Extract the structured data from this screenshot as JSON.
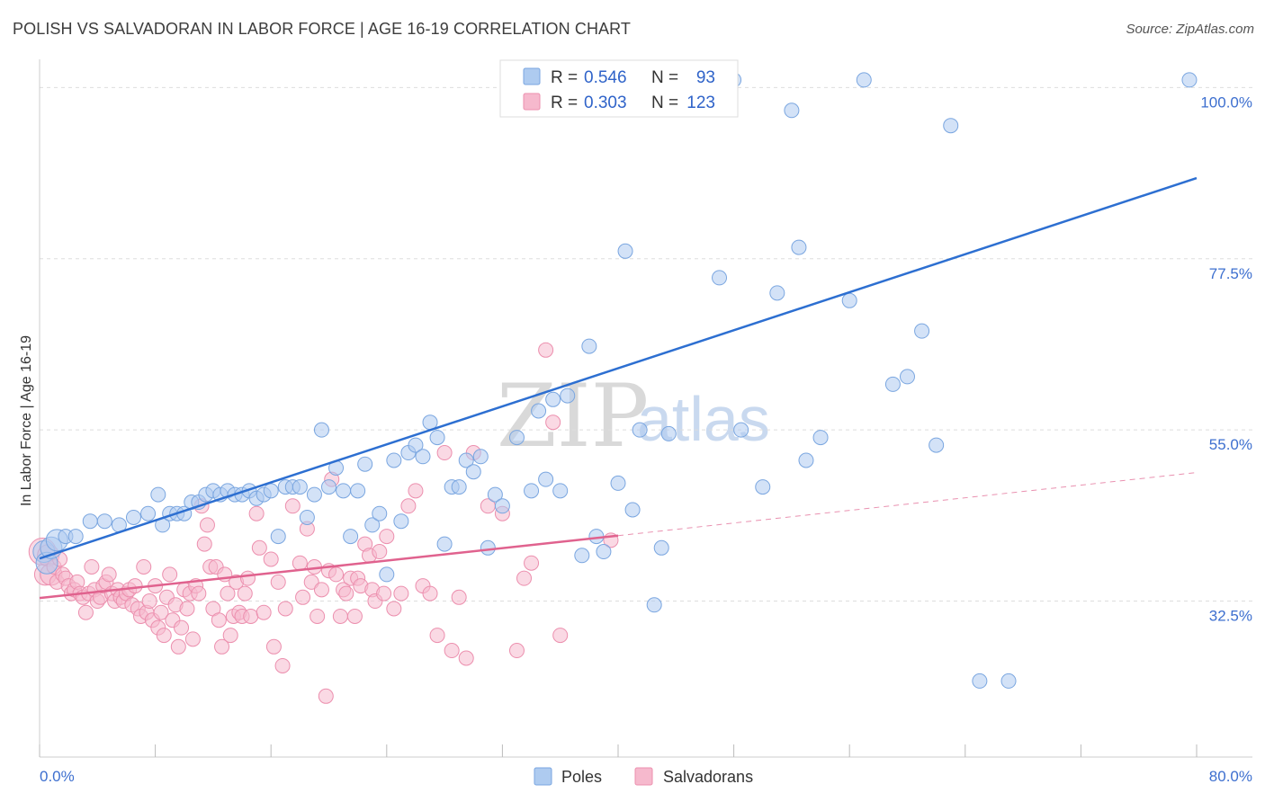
{
  "title": "POLISH VS SALVADORAN IN LABOR FORCE | AGE 16-19 CORRELATION CHART",
  "source": "Source: ZipAtlas.com",
  "watermark": {
    "zip": "ZIP",
    "atlas": "atlas"
  },
  "legend": {
    "poles": {
      "r_label": "R =",
      "r_value": "0.546",
      "n_label": "N =",
      "n_value": "93"
    },
    "salvadorans": {
      "r_label": "R =",
      "r_value": "0.303",
      "n_label": "N =",
      "n_value": "123"
    }
  },
  "bottom_legend": {
    "poles": "Poles",
    "salvadorans": "Salvadorans"
  },
  "colors": {
    "poles_fill": "#aecbf0",
    "poles_stroke": "#7aa6e0",
    "poles_line": "#2d6fd1",
    "salv_fill": "#f6b9cd",
    "salv_stroke": "#ec8fae",
    "salv_line": "#e0628e",
    "grid": "#dddddd",
    "axis_text": "#3d6fcf"
  },
  "chart_data": {
    "type": "scatter",
    "title": "POLISH VS SALVADORAN IN LABOR FORCE | AGE 16-19 CORRELATION CHART",
    "xlabel": "",
    "ylabel": "In Labor Force | Age 16-19",
    "xlim": [
      0,
      80
    ],
    "ylim": [
      12,
      103
    ],
    "x_tick_labels": [
      "0.0%",
      "80.0%"
    ],
    "y_ticks": [
      32.5,
      55.0,
      77.5,
      100.0
    ],
    "y_tick_labels": [
      "32.5%",
      "55.0%",
      "77.5%",
      "100.0%"
    ],
    "grid": true,
    "series": [
      {
        "name": "Poles",
        "trend": {
          "x0": 0,
          "y0": 38.1,
          "x1": 80,
          "y1": 88.1
        },
        "points": [
          [
            0.3,
            39,
            1
          ],
          [
            0.5,
            37.5,
            1
          ],
          [
            0.8,
            39.5,
            1
          ],
          [
            1.2,
            40.5,
            1
          ],
          [
            1.8,
            41,
            0
          ],
          [
            2.5,
            41,
            0
          ],
          [
            3.5,
            43,
            0
          ],
          [
            4.5,
            43,
            0
          ],
          [
            5.5,
            42.5,
            0
          ],
          [
            6.5,
            43.5,
            0
          ],
          [
            7.5,
            44,
            0
          ],
          [
            8.2,
            46.5,
            0
          ],
          [
            8.5,
            42.5,
            0
          ],
          [
            9,
            44,
            0
          ],
          [
            9.5,
            44,
            0
          ],
          [
            10,
            44,
            0
          ],
          [
            10.5,
            45.5,
            0
          ],
          [
            11,
            45.5,
            0
          ],
          [
            11.5,
            46.5,
            0
          ],
          [
            12,
            47,
            0
          ],
          [
            12.5,
            46.5,
            0
          ],
          [
            13,
            47,
            0
          ],
          [
            13.5,
            46.5,
            0
          ],
          [
            14,
            46.5,
            0
          ],
          [
            14.5,
            47,
            0
          ],
          [
            15,
            46,
            0
          ],
          [
            15.5,
            46.5,
            0
          ],
          [
            16,
            47,
            0
          ],
          [
            16.5,
            41,
            0
          ],
          [
            17,
            47.5,
            0
          ],
          [
            17.5,
            47.5,
            0
          ],
          [
            18,
            47.5,
            0
          ],
          [
            18.5,
            43.5,
            0
          ],
          [
            19,
            46.5,
            0
          ],
          [
            19.5,
            55,
            0
          ],
          [
            20,
            47.5,
            0
          ],
          [
            20.5,
            50,
            0
          ],
          [
            21,
            47,
            0
          ],
          [
            21.5,
            41,
            0
          ],
          [
            22,
            47,
            0
          ],
          [
            22.5,
            50.5,
            0
          ],
          [
            23,
            42.5,
            0
          ],
          [
            23.5,
            44,
            0
          ],
          [
            24,
            36,
            0
          ],
          [
            24.5,
            51,
            0
          ],
          [
            25,
            43,
            0
          ],
          [
            25.5,
            52,
            0
          ],
          [
            26,
            53,
            0
          ],
          [
            26.5,
            51.5,
            0
          ],
          [
            27,
            56,
            0
          ],
          [
            27.5,
            54,
            0
          ],
          [
            28,
            40,
            0
          ],
          [
            28.5,
            47.5,
            0
          ],
          [
            29,
            47.5,
            0
          ],
          [
            29.5,
            51,
            0
          ],
          [
            30,
            49.5,
            0
          ],
          [
            30.5,
            51.5,
            0
          ],
          [
            31,
            39.5,
            0
          ],
          [
            31.5,
            46.5,
            0
          ],
          [
            32,
            45,
            0
          ],
          [
            33,
            54,
            0
          ],
          [
            34,
            47,
            0
          ],
          [
            34.5,
            57.5,
            0
          ],
          [
            35,
            48.5,
            0
          ],
          [
            35.5,
            59,
            0
          ],
          [
            36,
            47,
            0
          ],
          [
            36.5,
            59.5,
            0
          ],
          [
            37.5,
            38.5,
            0
          ],
          [
            38,
            66,
            0
          ],
          [
            38.5,
            41,
            0
          ],
          [
            39,
            39,
            0
          ],
          [
            40,
            48,
            0
          ],
          [
            40.5,
            78.5,
            0
          ],
          [
            41,
            44.5,
            0
          ],
          [
            41.5,
            55,
            0
          ],
          [
            42.5,
            32,
            0
          ],
          [
            43,
            39.5,
            0
          ],
          [
            43.5,
            54.5,
            0
          ],
          [
            45,
            101,
            0
          ],
          [
            46,
            101,
            0
          ],
          [
            47,
            75,
            0
          ],
          [
            48,
            101,
            0
          ],
          [
            48.5,
            55,
            0
          ],
          [
            50,
            47.5,
            0
          ],
          [
            51,
            73,
            0
          ],
          [
            52,
            97,
            0
          ],
          [
            52.5,
            79,
            0
          ],
          [
            53,
            51,
            0
          ],
          [
            54,
            54,
            0
          ],
          [
            56,
            72,
            0
          ],
          [
            57,
            101,
            0
          ],
          [
            59,
            61,
            0
          ],
          [
            60,
            62,
            0
          ],
          [
            61,
            68,
            0
          ],
          [
            62,
            53,
            0
          ],
          [
            63,
            95,
            0
          ],
          [
            65,
            22,
            0
          ],
          [
            67,
            22,
            0
          ],
          [
            79.5,
            101,
            0
          ]
        ]
      },
      {
        "name": "Salvadorans",
        "trend": {
          "x0": 0,
          "y0": 32.9,
          "x1": 40,
          "y1": 41.1
        },
        "trend_dashed": {
          "x0": 40,
          "y0": 41.1,
          "x1": 80,
          "y1": 49.4
        },
        "points": [
          [
            0.2,
            39,
            2
          ],
          [
            0.4,
            36,
            1
          ],
          [
            0.6,
            38.5,
            1
          ],
          [
            0.8,
            36,
            1
          ],
          [
            1,
            37,
            0
          ],
          [
            1.2,
            35,
            0
          ],
          [
            1.4,
            38,
            0
          ],
          [
            1.6,
            36,
            0
          ],
          [
            1.8,
            35.5,
            0
          ],
          [
            2,
            34.5,
            0
          ],
          [
            2.2,
            33.5,
            0
          ],
          [
            2.4,
            34,
            0
          ],
          [
            2.6,
            35,
            0
          ],
          [
            2.8,
            33.5,
            0
          ],
          [
            3,
            33,
            0
          ],
          [
            3.2,
            31,
            0
          ],
          [
            3.4,
            33.5,
            0
          ],
          [
            3.6,
            37,
            0
          ],
          [
            3.8,
            34,
            0
          ],
          [
            4,
            32.5,
            0
          ],
          [
            4.2,
            33,
            0
          ],
          [
            4.4,
            34.5,
            0
          ],
          [
            4.6,
            35,
            0
          ],
          [
            4.8,
            36,
            0
          ],
          [
            5,
            33.5,
            0
          ],
          [
            5.2,
            32.5,
            0
          ],
          [
            5.4,
            34,
            0
          ],
          [
            5.6,
            33,
            0
          ],
          [
            5.8,
            32.5,
            0
          ],
          [
            6,
            33.5,
            0
          ],
          [
            6.2,
            34,
            0
          ],
          [
            6.4,
            32,
            0
          ],
          [
            6.6,
            34.5,
            0
          ],
          [
            6.8,
            31.5,
            0
          ],
          [
            7,
            30.5,
            0
          ],
          [
            7.2,
            37,
            0
          ],
          [
            7.4,
            31,
            0
          ],
          [
            7.6,
            32.5,
            0
          ],
          [
            7.8,
            30,
            0
          ],
          [
            8,
            34.5,
            0
          ],
          [
            8.2,
            29,
            0
          ],
          [
            8.4,
            31,
            0
          ],
          [
            8.6,
            28,
            0
          ],
          [
            8.8,
            33,
            0
          ],
          [
            9,
            36,
            0
          ],
          [
            9.2,
            30,
            0
          ],
          [
            9.4,
            32,
            0
          ],
          [
            9.6,
            26.5,
            0
          ],
          [
            9.8,
            29,
            0
          ],
          [
            10,
            34,
            0
          ],
          [
            10.2,
            31.5,
            0
          ],
          [
            10.4,
            33.5,
            0
          ],
          [
            10.6,
            27.5,
            0
          ],
          [
            10.8,
            34.5,
            0
          ],
          [
            11,
            33.5,
            0
          ],
          [
            11.2,
            45,
            0
          ],
          [
            11.4,
            40,
            0
          ],
          [
            11.6,
            42.5,
            0
          ],
          [
            11.8,
            37,
            0
          ],
          [
            12,
            31.5,
            0
          ],
          [
            12.2,
            37,
            0
          ],
          [
            12.4,
            30,
            0
          ],
          [
            12.6,
            26.5,
            0
          ],
          [
            12.8,
            36,
            0
          ],
          [
            13,
            33.5,
            0
          ],
          [
            13.2,
            28,
            0
          ],
          [
            13.4,
            30.5,
            0
          ],
          [
            13.6,
            35,
            0
          ],
          [
            13.8,
            31,
            0
          ],
          [
            14,
            30.5,
            0
          ],
          [
            14.2,
            33.5,
            0
          ],
          [
            14.4,
            35.5,
            0
          ],
          [
            14.6,
            30.5,
            0
          ],
          [
            15,
            44,
            0
          ],
          [
            15.2,
            39.5,
            0
          ],
          [
            15.5,
            31,
            0
          ],
          [
            16,
            38,
            0
          ],
          [
            16.2,
            26.5,
            0
          ],
          [
            16.5,
            35,
            0
          ],
          [
            16.8,
            24,
            0
          ],
          [
            17,
            31.5,
            0
          ],
          [
            17.5,
            45,
            0
          ],
          [
            18,
            37.5,
            0
          ],
          [
            18.2,
            33,
            0
          ],
          [
            18.5,
            42,
            0
          ],
          [
            18.8,
            35,
            0
          ],
          [
            19,
            37,
            0
          ],
          [
            19.2,
            30.5,
            0
          ],
          [
            19.5,
            34,
            0
          ],
          [
            19.8,
            20,
            0
          ],
          [
            20,
            36.5,
            0
          ],
          [
            20.2,
            48.5,
            0
          ],
          [
            20.5,
            36,
            0
          ],
          [
            20.8,
            30.5,
            0
          ],
          [
            21,
            34,
            0
          ],
          [
            21.2,
            33.5,
            0
          ],
          [
            21.5,
            35.5,
            0
          ],
          [
            21.8,
            30.5,
            0
          ],
          [
            22,
            35.5,
            0
          ],
          [
            22.2,
            34.5,
            0
          ],
          [
            22.5,
            40,
            0
          ],
          [
            22.8,
            38.5,
            0
          ],
          [
            23,
            34,
            0
          ],
          [
            23.2,
            32.5,
            0
          ],
          [
            23.5,
            39,
            0
          ],
          [
            23.8,
            33.5,
            0
          ],
          [
            24,
            41,
            0
          ],
          [
            24.5,
            31.5,
            0
          ],
          [
            25,
            33.5,
            0
          ],
          [
            25.5,
            45,
            0
          ],
          [
            26,
            47,
            0
          ],
          [
            26.5,
            34.5,
            0
          ],
          [
            27,
            33.5,
            0
          ],
          [
            27.5,
            28,
            0
          ],
          [
            28,
            52,
            0
          ],
          [
            28.5,
            26,
            0
          ],
          [
            29,
            33,
            0
          ],
          [
            29.5,
            25,
            0
          ],
          [
            30,
            52,
            0
          ],
          [
            31,
            45,
            0
          ],
          [
            32,
            44,
            0
          ],
          [
            33,
            26,
            0
          ],
          [
            33.5,
            35.5,
            0
          ],
          [
            34,
            37.5,
            0
          ],
          [
            35,
            65.5,
            0
          ],
          [
            35.5,
            56,
            0
          ],
          [
            36,
            28,
            0
          ],
          [
            39.5,
            40.5,
            0
          ]
        ]
      }
    ]
  }
}
